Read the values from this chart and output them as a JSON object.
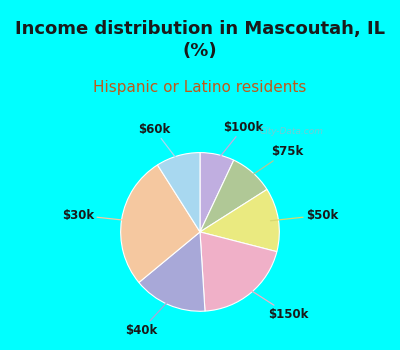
{
  "title": "Income distribution in Mascoutah, IL\n(%)",
  "subtitle": "Hispanic or Latino residents",
  "title_fontsize": 13,
  "subtitle_fontsize": 11,
  "labels": [
    "$100k",
    "$75k",
    "$50k",
    "$150k",
    "$40k",
    "$30k",
    "$60k"
  ],
  "values": [
    7,
    9,
    13,
    20,
    15,
    27,
    9
  ],
  "colors": [
    "#c0aee0",
    "#b0c896",
    "#eaea80",
    "#f0b0c8",
    "#a8a8d8",
    "#f5c8a0",
    "#a8d8f0"
  ],
  "line_colors": [
    "#c0aee0",
    "#b0c896",
    "#d8d870",
    "#f0b0c8",
    "#a8a8d8",
    "#f5c8a0",
    "#a8d8f0"
  ],
  "background_top": "#00ffff",
  "background_chart_color": "#d4ece0",
  "label_color": "#1a1a1a",
  "label_fontsize": 8.5,
  "subtitle_color": "#c05818",
  "watermark_color": "#a0b8c0",
  "wedge_edge_color": "white",
  "wedge_linewidth": 0.8
}
